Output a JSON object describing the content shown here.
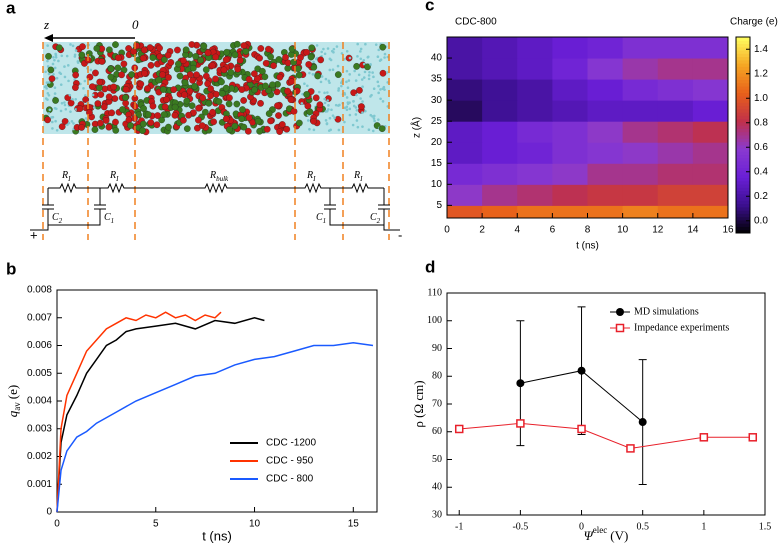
{
  "panel_a": {
    "label": "a",
    "z_label": "z",
    "zero_label": "0",
    "plus": "+",
    "minus": "-",
    "components": [
      {
        "main": "R",
        "sub": "I"
      },
      {
        "main": "R",
        "sub": "I"
      },
      {
        "main": "R",
        "sub": "bulk"
      },
      {
        "main": "R",
        "sub": "I"
      },
      {
        "main": "R",
        "sub": "I"
      },
      {
        "main": "C",
        "sub": "2"
      },
      {
        "main": "C",
        "sub": "1"
      },
      {
        "main": "C",
        "sub": "1"
      },
      {
        "main": "C",
        "sub": "2"
      }
    ]
  },
  "chart_data": [
    {
      "type": "heatmap",
      "panel": "c",
      "title": "CDC-800",
      "colorbar_label": "Charge (e)",
      "xlabel": "t (ns)",
      "ylabel": "z (Å)",
      "x_bins": [
        0,
        2,
        4,
        6,
        8,
        10,
        12,
        14,
        16
      ],
      "y_bins": [
        2,
        5,
        10,
        15,
        20,
        25,
        30,
        35,
        40,
        45
      ],
      "values": [
        [
          1.0,
          1.05,
          1.1,
          1.1,
          1.1,
          1.15,
          1.1,
          1.1
        ],
        [
          0.6,
          0.7,
          0.75,
          0.8,
          0.85,
          0.85,
          0.9,
          0.9
        ],
        [
          0.45,
          0.5,
          0.55,
          0.6,
          0.7,
          0.7,
          0.75,
          0.75
        ],
        [
          0.3,
          0.35,
          0.4,
          0.5,
          0.55,
          0.6,
          0.65,
          0.7
        ],
        [
          0.3,
          0.35,
          0.45,
          0.5,
          0.6,
          0.7,
          0.75,
          0.8
        ],
        [
          0.05,
          0.15,
          0.2,
          0.25,
          0.3,
          0.3,
          0.3,
          0.35
        ],
        [
          0.1,
          0.15,
          0.2,
          0.3,
          0.35,
          0.45,
          0.5,
          0.55
        ],
        [
          0.2,
          0.25,
          0.3,
          0.4,
          0.55,
          0.65,
          0.7,
          0.7
        ],
        [
          0.2,
          0.25,
          0.3,
          0.35,
          0.4,
          0.5,
          0.5,
          0.5
        ]
      ],
      "xlim": [
        0,
        16
      ],
      "xticks": [
        0,
        2,
        4,
        6,
        8,
        10,
        12,
        14,
        16
      ],
      "ylim": [
        2,
        45
      ],
      "yticks": [
        5,
        10,
        15,
        20,
        25,
        30,
        35,
        40
      ],
      "clim": [
        -0.1,
        1.5
      ],
      "cticks": [
        {
          "value": 0,
          "label": "0.0"
        },
        0.2,
        0.4,
        0.6,
        0.8,
        {
          "value": 1,
          "label": "1.0"
        },
        1.2,
        1.4
      ],
      "colormap": [
        "#000000",
        "#3b0f8f",
        "#6a1fd6",
        "#8a3ad0",
        "#c0304a",
        "#e8601a",
        "#f5a623",
        "#ffff60"
      ]
    },
    {
      "type": "line",
      "panel": "b",
      "xlabel": "t (ns)",
      "ylabel": {
        "main": "q",
        "sub": "av",
        "unit": "(e)"
      },
      "xlim": [
        0,
        16.2
      ],
      "xticks": [
        0,
        5,
        10,
        15
      ],
      "ylim": [
        0,
        0.008
      ],
      "yticks": [
        0,
        0.001,
        0.002,
        0.003,
        0.004,
        0.005,
        0.006,
        0.007,
        0.008
      ],
      "series": [
        {
          "name": "CDC -1200",
          "color": "#000000",
          "x": [
            0,
            0.2,
            0.5,
            1,
            1.5,
            2,
            2.5,
            3,
            3.5,
            4,
            5,
            6,
            7,
            8,
            9,
            10,
            10.5
          ],
          "values": [
            0,
            0.0025,
            0.0035,
            0.0042,
            0.005,
            0.0055,
            0.006,
            0.0062,
            0.0065,
            0.0066,
            0.0067,
            0.0068,
            0.0066,
            0.0069,
            0.0068,
            0.007,
            0.0069
          ]
        },
        {
          "name": "CDC - 950",
          "color": "#ff3300",
          "x": [
            0,
            0.2,
            0.5,
            1,
            1.5,
            2,
            2.5,
            3,
            3.5,
            4,
            4.5,
            5,
            5.5,
            6,
            6.5,
            7,
            7.5,
            8,
            8.3
          ],
          "values": [
            0,
            0.003,
            0.0042,
            0.005,
            0.0058,
            0.0062,
            0.0066,
            0.0068,
            0.007,
            0.0069,
            0.0071,
            0.007,
            0.0072,
            0.007,
            0.0071,
            0.0069,
            0.0071,
            0.007,
            0.0072
          ]
        },
        {
          "name": "CDC - 800",
          "color": "#1a5aff",
          "x": [
            0,
            0.2,
            0.5,
            1,
            1.5,
            2,
            3,
            4,
            5,
            6,
            7,
            8,
            9,
            10,
            11,
            12,
            13,
            14,
            15,
            16
          ],
          "values": [
            0,
            0.0015,
            0.0022,
            0.0027,
            0.0029,
            0.0032,
            0.0036,
            0.004,
            0.0043,
            0.0046,
            0.0049,
            0.005,
            0.0053,
            0.0055,
            0.0056,
            0.0058,
            0.006,
            0.006,
            0.0061,
            0.006
          ]
        }
      ]
    },
    {
      "type": "errorline",
      "panel": "d",
      "xlabel": {
        "main": "Ψ",
        "sup": "elec",
        "unit": "(V)"
      },
      "ylabel": "ρ (Ω cm)",
      "xlim": [
        -1.1,
        1.5
      ],
      "xticks": [
        -1,
        -0.5,
        0,
        0.5,
        1,
        1.5
      ],
      "ylim": [
        30,
        110
      ],
      "yticks": [
        30,
        40,
        50,
        60,
        70,
        80,
        90,
        100,
        110
      ],
      "series": [
        {
          "name": "MD simulations",
          "color": "#000000",
          "marker": "circle",
          "x": [
            -0.5,
            0,
            0.5
          ],
          "values": [
            77.5,
            82,
            63.5
          ],
          "errors": [
            22.5,
            23,
            22.5
          ]
        },
        {
          "name": "Impedance experiments",
          "color": "#e8202a",
          "marker": "square",
          "x": [
            -1,
            -0.5,
            0,
            0.4,
            1,
            1.4
          ],
          "values": [
            61,
            63,
            61,
            54,
            58,
            58
          ]
        }
      ]
    }
  ]
}
